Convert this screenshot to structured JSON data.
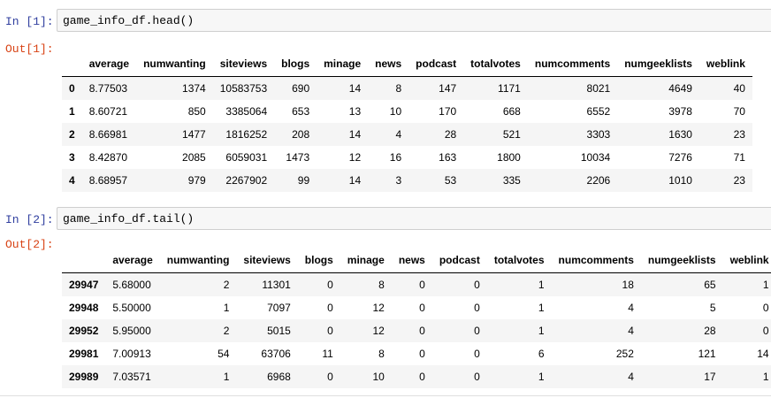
{
  "cells": [
    {
      "in_prompt": "In [1]:",
      "code": "game_info_df.head()",
      "out_prompt": "Out[1]:",
      "columns": [
        "average",
        "numwanting",
        "siteviews",
        "blogs",
        "minage",
        "news",
        "podcast",
        "totalvotes",
        "numcomments",
        "numgeeklists",
        "weblink"
      ],
      "rows": [
        {
          "index": "0",
          "values": [
            "8.77503",
            "1374",
            "10583753",
            "690",
            "14",
            "8",
            "147",
            "1171",
            "8021",
            "4649",
            "40"
          ]
        },
        {
          "index": "1",
          "values": [
            "8.60721",
            "850",
            "3385064",
            "653",
            "13",
            "10",
            "170",
            "668",
            "6552",
            "3978",
            "70"
          ]
        },
        {
          "index": "2",
          "values": [
            "8.66981",
            "1477",
            "1816252",
            "208",
            "14",
            "4",
            "28",
            "521",
            "3303",
            "1630",
            "23"
          ]
        },
        {
          "index": "3",
          "values": [
            "8.42870",
            "2085",
            "6059031",
            "1473",
            "12",
            "16",
            "163",
            "1800",
            "10034",
            "7276",
            "71"
          ]
        },
        {
          "index": "4",
          "values": [
            "8.68957",
            "979",
            "2267902",
            "99",
            "14",
            "3",
            "53",
            "335",
            "2206",
            "1010",
            "23"
          ]
        }
      ]
    },
    {
      "in_prompt": "In [2]:",
      "code": "game_info_df.tail()",
      "out_prompt": "Out[2]:",
      "columns": [
        "average",
        "numwanting",
        "siteviews",
        "blogs",
        "minage",
        "news",
        "podcast",
        "totalvotes",
        "numcomments",
        "numgeeklists",
        "weblink"
      ],
      "rows": [
        {
          "index": "29947",
          "values": [
            "5.68000",
            "2",
            "11301",
            "0",
            "8",
            "0",
            "0",
            "1",
            "18",
            "65",
            "1"
          ]
        },
        {
          "index": "29948",
          "values": [
            "5.50000",
            "1",
            "7097",
            "0",
            "12",
            "0",
            "0",
            "1",
            "4",
            "5",
            "0"
          ]
        },
        {
          "index": "29952",
          "values": [
            "5.95000",
            "2",
            "5015",
            "0",
            "12",
            "0",
            "0",
            "1",
            "4",
            "28",
            "0"
          ]
        },
        {
          "index": "29981",
          "values": [
            "7.00913",
            "54",
            "63706",
            "11",
            "8",
            "0",
            "0",
            "6",
            "252",
            "121",
            "14"
          ]
        },
        {
          "index": "29989",
          "values": [
            "7.03571",
            "1",
            "6968",
            "0",
            "10",
            "0",
            "0",
            "1",
            "4",
            "17",
            "1"
          ]
        }
      ]
    }
  ]
}
